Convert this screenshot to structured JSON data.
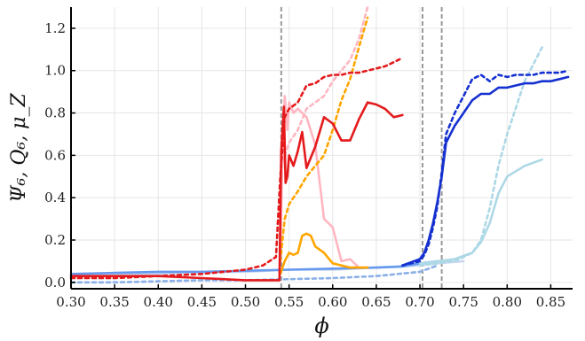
{
  "chart_data": {
    "type": "line",
    "title": "",
    "xlabel": "ϕ",
    "ylabel": "Ψ₆,  Q₆,  μ_Z",
    "xlim": [
      0.3,
      0.875
    ],
    "ylim": [
      -0.03,
      1.3
    ],
    "xticks": [
      0.3,
      0.35,
      0.4,
      0.45,
      0.5,
      0.55,
      0.6,
      0.65,
      0.7,
      0.75,
      0.8,
      0.85
    ],
    "xtick_labels": [
      "0.30",
      "0.35",
      "0.40",
      "0.45",
      "0.50",
      "0.55",
      "0.60",
      "0.65",
      "0.70",
      "0.75",
      "0.80",
      "0.85"
    ],
    "yticks": [
      0.0,
      0.2,
      0.4,
      0.6,
      0.8,
      1.0,
      1.2
    ],
    "ytick_labels": [
      "0.0",
      "0.2",
      "0.4",
      "0.6",
      "0.8",
      "1.0",
      "1.2"
    ],
    "grid": true,
    "vertical_lines": [
      0.541,
      0.703,
      0.725
    ],
    "series": [
      {
        "color": "#c8d8f0",
        "dashed": false,
        "x": [
          0.3,
          0.35,
          0.4,
          0.45,
          0.5,
          0.55,
          0.6,
          0.65,
          0.7,
          0.72,
          0.75
        ],
        "y": [
          0.03,
          0.04,
          0.04,
          0.05,
          0.05,
          0.06,
          0.06,
          0.07,
          0.08,
          0.09,
          0.1
        ]
      },
      {
        "color": "#6699ee",
        "dashed": false,
        "x": [
          0.3,
          0.35,
          0.4,
          0.45,
          0.5,
          0.55,
          0.6,
          0.65,
          0.68,
          0.7,
          0.72
        ],
        "y": [
          0.04,
          0.045,
          0.05,
          0.05,
          0.055,
          0.06,
          0.065,
          0.07,
          0.075,
          0.09,
          0.1
        ]
      },
      {
        "color": "#8ab0e8",
        "dashed": true,
        "x": [
          0.3,
          0.35,
          0.4,
          0.45,
          0.5,
          0.55,
          0.6,
          0.65,
          0.7,
          0.72
        ],
        "y": [
          0.0,
          0.0,
          0.005,
          0.01,
          0.01,
          0.015,
          0.02,
          0.03,
          0.05,
          0.08
        ]
      },
      {
        "color": "#add8e6",
        "dashed": false,
        "x": [
          0.7,
          0.72,
          0.74,
          0.76,
          0.77,
          0.78,
          0.79,
          0.8,
          0.82,
          0.84
        ],
        "y": [
          0.09,
          0.1,
          0.11,
          0.14,
          0.19,
          0.28,
          0.42,
          0.5,
          0.55,
          0.58
        ]
      },
      {
        "color": "#add8e6",
        "dashed": true,
        "x": [
          0.7,
          0.72,
          0.74,
          0.76,
          0.77,
          0.78,
          0.79,
          0.8,
          0.82,
          0.84
        ],
        "y": [
          0.08,
          0.09,
          0.1,
          0.14,
          0.2,
          0.35,
          0.55,
          0.7,
          0.95,
          1.11
        ]
      },
      {
        "color": "#1530d0",
        "dashed": false,
        "x": [
          0.68,
          0.7,
          0.705,
          0.71,
          0.715,
          0.72,
          0.725,
          0.73,
          0.74,
          0.75,
          0.76,
          0.77,
          0.78,
          0.79,
          0.8,
          0.81,
          0.82,
          0.83,
          0.84,
          0.85,
          0.86,
          0.87
        ],
        "y": [
          0.08,
          0.11,
          0.14,
          0.2,
          0.28,
          0.38,
          0.5,
          0.66,
          0.74,
          0.8,
          0.86,
          0.89,
          0.89,
          0.92,
          0.92,
          0.93,
          0.94,
          0.94,
          0.95,
          0.95,
          0.96,
          0.97
        ]
      },
      {
        "color": "#1530d0",
        "dashed": true,
        "x": [
          0.68,
          0.7,
          0.705,
          0.71,
          0.715,
          0.72,
          0.725,
          0.73,
          0.74,
          0.75,
          0.76,
          0.77,
          0.78,
          0.79,
          0.8,
          0.81,
          0.82,
          0.83,
          0.84,
          0.85,
          0.86,
          0.87
        ],
        "y": [
          0.08,
          0.1,
          0.13,
          0.18,
          0.26,
          0.36,
          0.52,
          0.7,
          0.8,
          0.88,
          0.96,
          0.98,
          0.95,
          0.98,
          0.97,
          0.98,
          0.98,
          0.98,
          0.99,
          0.99,
          0.99,
          1.0
        ]
      },
      {
        "color": "#ffb6c1",
        "dashed": false,
        "x": [
          0.54,
          0.542,
          0.545,
          0.548,
          0.55,
          0.555,
          0.56,
          0.57,
          0.58,
          0.59,
          0.6,
          0.61,
          0.62,
          0.63,
          0.64
        ],
        "y": [
          0.1,
          0.55,
          0.88,
          0.72,
          0.85,
          0.8,
          0.82,
          0.78,
          0.65,
          0.3,
          0.26,
          0.1,
          0.11,
          0.07,
          0.07
        ]
      },
      {
        "color": "#ffb6c1",
        "dashed": true,
        "x": [
          0.54,
          0.545,
          0.55,
          0.56,
          0.57,
          0.58,
          0.59,
          0.6,
          0.61,
          0.62,
          0.63,
          0.64
        ],
        "y": [
          0.5,
          0.6,
          0.66,
          0.72,
          0.82,
          0.85,
          0.88,
          0.95,
          1.0,
          1.05,
          1.15,
          1.3
        ]
      },
      {
        "color": "#ffa500",
        "dashed": false,
        "x": [
          0.54,
          0.545,
          0.55,
          0.555,
          0.56,
          0.565,
          0.57,
          0.575,
          0.58,
          0.59,
          0.6,
          0.61,
          0.62,
          0.63,
          0.64
        ],
        "y": [
          0.04,
          0.1,
          0.14,
          0.13,
          0.14,
          0.22,
          0.23,
          0.22,
          0.17,
          0.14,
          0.09,
          0.08,
          0.07,
          0.07,
          0.07
        ]
      },
      {
        "color": "#ffa500",
        "dashed": true,
        "x": [
          0.54,
          0.545,
          0.55,
          0.56,
          0.57,
          0.58,
          0.59,
          0.6,
          0.61,
          0.62,
          0.63,
          0.64
        ],
        "y": [
          0.1,
          0.3,
          0.37,
          0.43,
          0.5,
          0.55,
          0.6,
          0.72,
          0.86,
          0.96,
          1.11,
          1.25
        ]
      },
      {
        "color": "#e41a1c",
        "dashed": false,
        "x": [
          0.3,
          0.35,
          0.4,
          0.45,
          0.5,
          0.52,
          0.535,
          0.539,
          0.541,
          0.544,
          0.546,
          0.548,
          0.55,
          0.555,
          0.56,
          0.565,
          0.57,
          0.58,
          0.59,
          0.6,
          0.61,
          0.62,
          0.63,
          0.64,
          0.65,
          0.66,
          0.67,
          0.68
        ],
        "y": [
          0.03,
          0.03,
          0.03,
          0.02,
          0.01,
          0.01,
          0.01,
          0.01,
          0.62,
          0.83,
          0.47,
          0.5,
          0.6,
          0.55,
          0.62,
          0.71,
          0.54,
          0.64,
          0.78,
          0.75,
          0.67,
          0.67,
          0.77,
          0.85,
          0.84,
          0.82,
          0.78,
          0.79
        ]
      },
      {
        "color": "#e41a1c",
        "dashed": true,
        "x": [
          0.3,
          0.35,
          0.4,
          0.45,
          0.5,
          0.52,
          0.535,
          0.54,
          0.545,
          0.55,
          0.56,
          0.57,
          0.58,
          0.59,
          0.6,
          0.61,
          0.62,
          0.63,
          0.64,
          0.65,
          0.66,
          0.67,
          0.68
        ],
        "y": [
          0.02,
          0.02,
          0.03,
          0.04,
          0.06,
          0.08,
          0.12,
          0.5,
          0.78,
          0.82,
          0.85,
          0.93,
          0.94,
          0.97,
          0.98,
          0.98,
          0.99,
          0.99,
          1.0,
          1.01,
          1.02,
          1.04,
          1.06
        ]
      }
    ]
  }
}
